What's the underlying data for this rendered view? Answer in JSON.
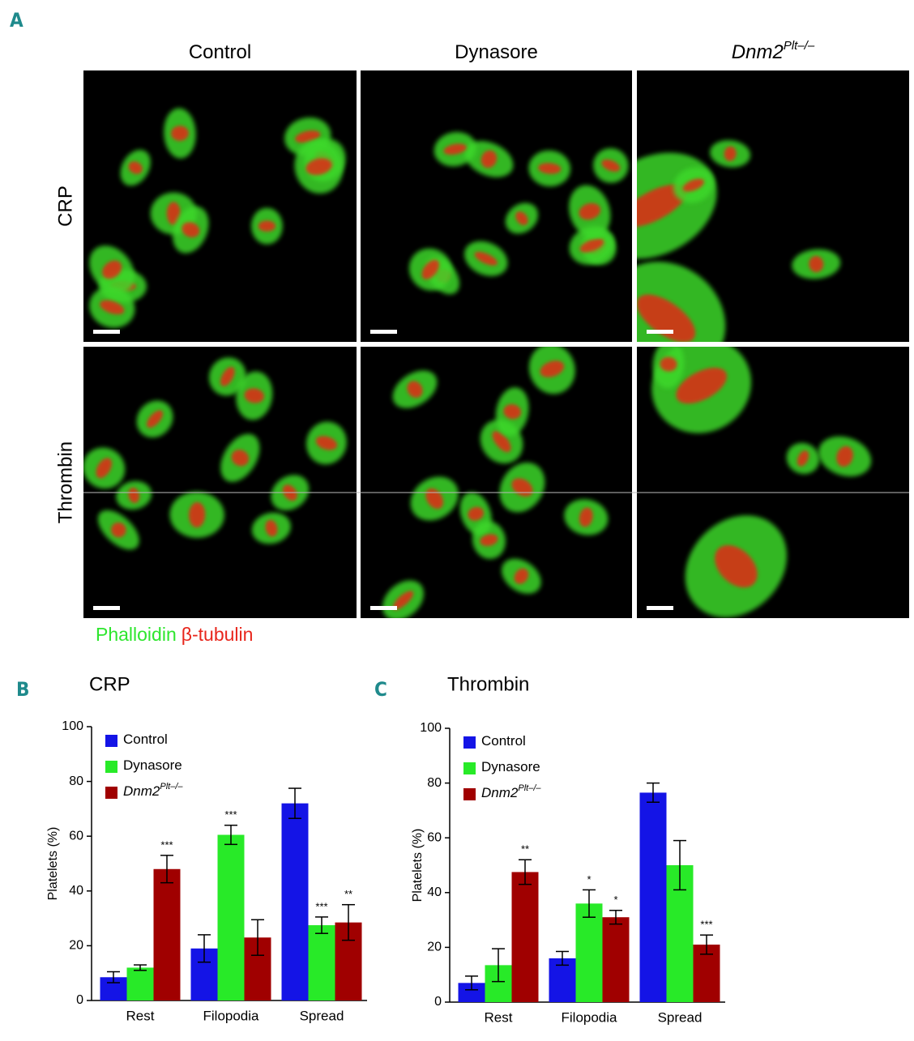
{
  "panel_a": {
    "label": "A",
    "columns": [
      {
        "text": "Control"
      },
      {
        "text": "Dynasore"
      },
      {
        "text": "Dnm2",
        "sup": "Plt–/–"
      }
    ],
    "rows": [
      "CRP",
      "Thrombin"
    ],
    "stain_green": "Phalloidin",
    "stain_red": "β-tubulin"
  },
  "chart_data": [
    {
      "type": "bar",
      "panel": "B",
      "title": "CRP",
      "y_label": "Platelets (%)",
      "categories": [
        "Rest",
        "Filopodia",
        "Spread"
      ],
      "ylim": [
        0,
        100
      ],
      "yticks": [
        0,
        20,
        40,
        60,
        80,
        100
      ],
      "legend": "top-left",
      "series": [
        {
          "name": "Control",
          "color": "#1414e6",
          "values": [
            8.5,
            19,
            72
          ],
          "errors": [
            2,
            5,
            5.5
          ],
          "significance": [
            null,
            null,
            null
          ]
        },
        {
          "name": "Dynasore",
          "color": "#28ea28",
          "values": [
            12,
            60.5,
            27.5
          ],
          "errors": [
            1,
            3.5,
            3
          ],
          "significance": [
            null,
            "***",
            "***"
          ]
        },
        {
          "name": "Dnm2",
          "name_sup": "Plt–/–",
          "color": "#a00000",
          "values": [
            48,
            23,
            28.5
          ],
          "errors": [
            5,
            6.5,
            6.5
          ],
          "significance": [
            "***",
            null,
            "**"
          ]
        }
      ]
    },
    {
      "type": "bar",
      "panel": "C",
      "title": "Thrombin",
      "y_label": "Platelets (%)",
      "categories": [
        "Rest",
        "Filopodia",
        "Spread"
      ],
      "ylim": [
        0,
        100
      ],
      "yticks": [
        0,
        20,
        40,
        60,
        80,
        100
      ],
      "legend": "top-left",
      "series": [
        {
          "name": "Control",
          "color": "#1414e6",
          "values": [
            7,
            16,
            76.5
          ],
          "errors": [
            2.5,
            2.5,
            3.5
          ],
          "significance": [
            null,
            null,
            null
          ]
        },
        {
          "name": "Dynasore",
          "color": "#28ea28",
          "values": [
            13.5,
            36,
            50
          ],
          "errors": [
            6,
            5,
            9
          ],
          "significance": [
            null,
            "*",
            null
          ]
        },
        {
          "name": "Dnm2",
          "name_sup": "Plt–/–",
          "color": "#a00000",
          "values": [
            47.5,
            31,
            21
          ],
          "errors": [
            4.5,
            2.5,
            3.5
          ],
          "significance": [
            "**",
            "*",
            "***"
          ]
        }
      ]
    }
  ]
}
